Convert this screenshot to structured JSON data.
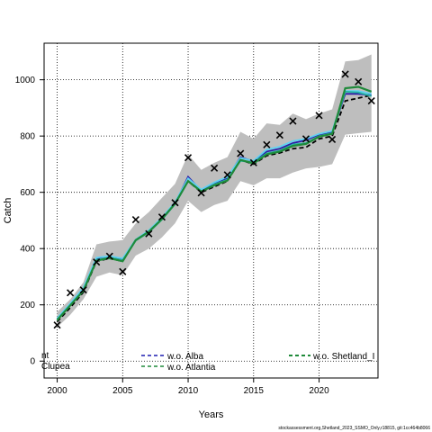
{
  "chart_data": {
    "type": "line",
    "xlabel": "Years",
    "ylabel": "Catch",
    "xlim": [
      1999,
      2024.5
    ],
    "ylim": [
      -60,
      1130
    ],
    "x_ticks": [
      2000,
      2005,
      2010,
      2015,
      2020
    ],
    "y_ticks": [
      0,
      200,
      400,
      600,
      800,
      1000
    ],
    "grid": true,
    "x": [
      2000,
      2001,
      2002,
      2003,
      2004,
      2005,
      2006,
      2007,
      2008,
      2009,
      2010,
      2011,
      2012,
      2013,
      2014,
      2015,
      2016,
      2017,
      2018,
      2019,
      2020,
      2021,
      2022,
      2023,
      2024
    ],
    "observed": {
      "marker": "x",
      "values": [
        128,
        243,
        253,
        352,
        373,
        318,
        503,
        453,
        512,
        563,
        723,
        598,
        686,
        662,
        738,
        705,
        769,
        803,
        853,
        790,
        873,
        788,
        1020,
        993,
        925
      ]
    },
    "confidence_band": {
      "color": "#bebebe",
      "lower": [
        120,
        165,
        220,
        300,
        315,
        305,
        375,
        400,
        440,
        490,
        570,
        530,
        555,
        570,
        640,
        625,
        650,
        650,
        670,
        685,
        690,
        700,
        805,
        810,
        815
      ],
      "upper": [
        175,
        220,
        280,
        415,
        425,
        430,
        490,
        530,
        580,
        630,
        735,
        680,
        705,
        725,
        815,
        790,
        845,
        840,
        880,
        860,
        880,
        895,
        1065,
        1070,
        1090
      ]
    },
    "series": [
      {
        "name": "",
        "color": "#000000",
        "dash": "5,3",
        "values": [
          140,
          190,
          245,
          355,
          365,
          355,
          430,
          460,
          505,
          560,
          640,
          600,
          620,
          640,
          715,
          700,
          730,
          740,
          755,
          760,
          790,
          800,
          925,
          935,
          945
        ]
      },
      {
        "name": "",
        "color": "#2b1aa6",
        "dash": "",
        "values": [
          150,
          200,
          255,
          365,
          370,
          360,
          430,
          460,
          505,
          560,
          655,
          605,
          630,
          650,
          725,
          710,
          745,
          755,
          775,
          785,
          805,
          815,
          950,
          950,
          945
        ]
      },
      {
        "name": "",
        "color": "#5fd3f2",
        "dash": "",
        "values": [
          152,
          205,
          260,
          368,
          373,
          365,
          432,
          465,
          510,
          565,
          650,
          610,
          635,
          655,
          722,
          712,
          752,
          762,
          782,
          790,
          808,
          818,
          960,
          960,
          950
        ]
      },
      {
        "name": "",
        "color": "#26b5a3",
        "dash": "",
        "values": [
          148,
          200,
          252,
          360,
          368,
          358,
          428,
          458,
          503,
          558,
          640,
          602,
          628,
          645,
          712,
          706,
          738,
          748,
          770,
          775,
          800,
          810,
          958,
          955,
          942
        ]
      },
      {
        "name": "",
        "color": "#1f8a3a",
        "dash": "",
        "values": [
          145,
          198,
          250,
          357,
          366,
          355,
          430,
          460,
          505,
          560,
          640,
          603,
          625,
          642,
          715,
          703,
          735,
          745,
          765,
          772,
          798,
          808,
          970,
          975,
          958
        ]
      }
    ],
    "legend": [
      {
        "label": "nt",
        "color": "#000000",
        "dash": "",
        "pos": "left"
      },
      {
        "label": "Clupea",
        "color": "#000000",
        "dash": "",
        "pos": "left"
      },
      {
        "label": "w.o. Alba",
        "color": "#1c1cb0",
        "dash": "4,3",
        "pos": "middle"
      },
      {
        "label": "w.o. Atlantia",
        "color": "#1f8a3a",
        "dash": "4,3",
        "pos": "middle"
      },
      {
        "label": "w.o. Shetland_I",
        "color": "#1f8a3a",
        "dash": "4,3",
        "pos": "right"
      }
    ]
  },
  "footer": "stockassessment.org,Shetland_2023_SSMO_Only,r18815, git:1cc464b8066"
}
